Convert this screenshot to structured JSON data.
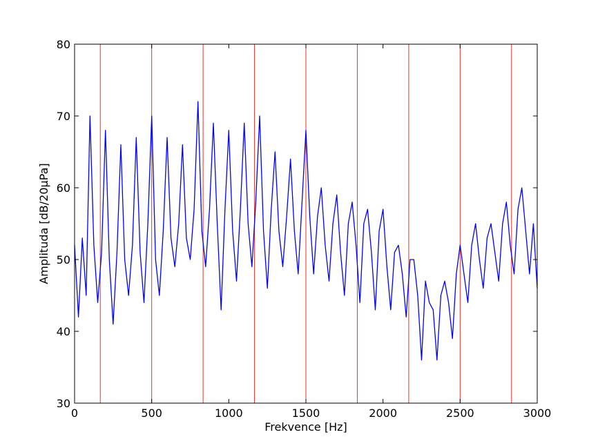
{
  "chart_data": {
    "type": "line",
    "title": "",
    "xlabel": "Frekvence [Hz]",
    "ylabel": "Amplituda [dB/20µPa]",
    "xlim": [
      0,
      3000
    ],
    "ylim": [
      30,
      80
    ],
    "x_ticks": [
      "0",
      "500",
      "1000",
      "1500",
      "2000",
      "2500",
      "3000"
    ],
    "y_ticks": [
      "30",
      "40",
      "50",
      "60",
      "70",
      "80"
    ],
    "grid": false,
    "legend": "none",
    "vertical_markers": {
      "color": "#e8322b",
      "x": [
        166.7,
        500,
        833.3,
        1166.7,
        1500,
        1833.3,
        2166.7,
        2500,
        2833.3
      ]
    },
    "series": [
      {
        "color": "#0000ff",
        "x": [
          0,
          25,
          50,
          75,
          100,
          125,
          150,
          175,
          200,
          225,
          250,
          275,
          300,
          325,
          350,
          375,
          400,
          425,
          450,
          475,
          500,
          525,
          550,
          575,
          600,
          625,
          650,
          675,
          700,
          725,
          750,
          775,
          800,
          825,
          850,
          875,
          900,
          925,
          950,
          975,
          1000,
          1025,
          1050,
          1075,
          1100,
          1125,
          1150,
          1175,
          1200,
          1225,
          1250,
          1275,
          1300,
          1325,
          1350,
          1375,
          1400,
          1425,
          1450,
          1475,
          1500,
          1525,
          1550,
          1575,
          1600,
          1625,
          1650,
          1675,
          1700,
          1725,
          1750,
          1775,
          1800,
          1825,
          1850,
          1875,
          1900,
          1925,
          1950,
          1975,
          2000,
          2025,
          2050,
          2075,
          2100,
          2125,
          2150,
          2175,
          2200,
          2225,
          2250,
          2275,
          2300,
          2325,
          2350,
          2375,
          2400,
          2425,
          2450,
          2475,
          2500,
          2525,
          2550,
          2575,
          2600,
          2625,
          2650,
          2675,
          2700,
          2725,
          2750,
          2775,
          2800,
          2825,
          2850,
          2875,
          2900,
          2925,
          2950,
          2975,
          3000
        ],
        "values": [
          52,
          42,
          53,
          45,
          70,
          52,
          44,
          51,
          68,
          50,
          41,
          51,
          66,
          50,
          45,
          52,
          67,
          51,
          44,
          55,
          70,
          50,
          45,
          54,
          67,
          53,
          49,
          55,
          66,
          53,
          50,
          57,
          72,
          54,
          49,
          57,
          69,
          55,
          43,
          57,
          68,
          54,
          47,
          57,
          69,
          55,
          49,
          58,
          70,
          54,
          46,
          57,
          65,
          54,
          49,
          56,
          64,
          54,
          48,
          58,
          68,
          56,
          48,
          56,
          60,
          52,
          47,
          55,
          59,
          51,
          45,
          55,
          58,
          52,
          44,
          55,
          57,
          51,
          43,
          54,
          57,
          49,
          43,
          51,
          52,
          48,
          42,
          50,
          50,
          45,
          36,
          47,
          44,
          43,
          36,
          45,
          47,
          44,
          39,
          48,
          52,
          48,
          44,
          52,
          55,
          50,
          46,
          53,
          55,
          51,
          47,
          55,
          58,
          52,
          48,
          57,
          60,
          54,
          48,
          55,
          46
        ]
      }
    ]
  }
}
